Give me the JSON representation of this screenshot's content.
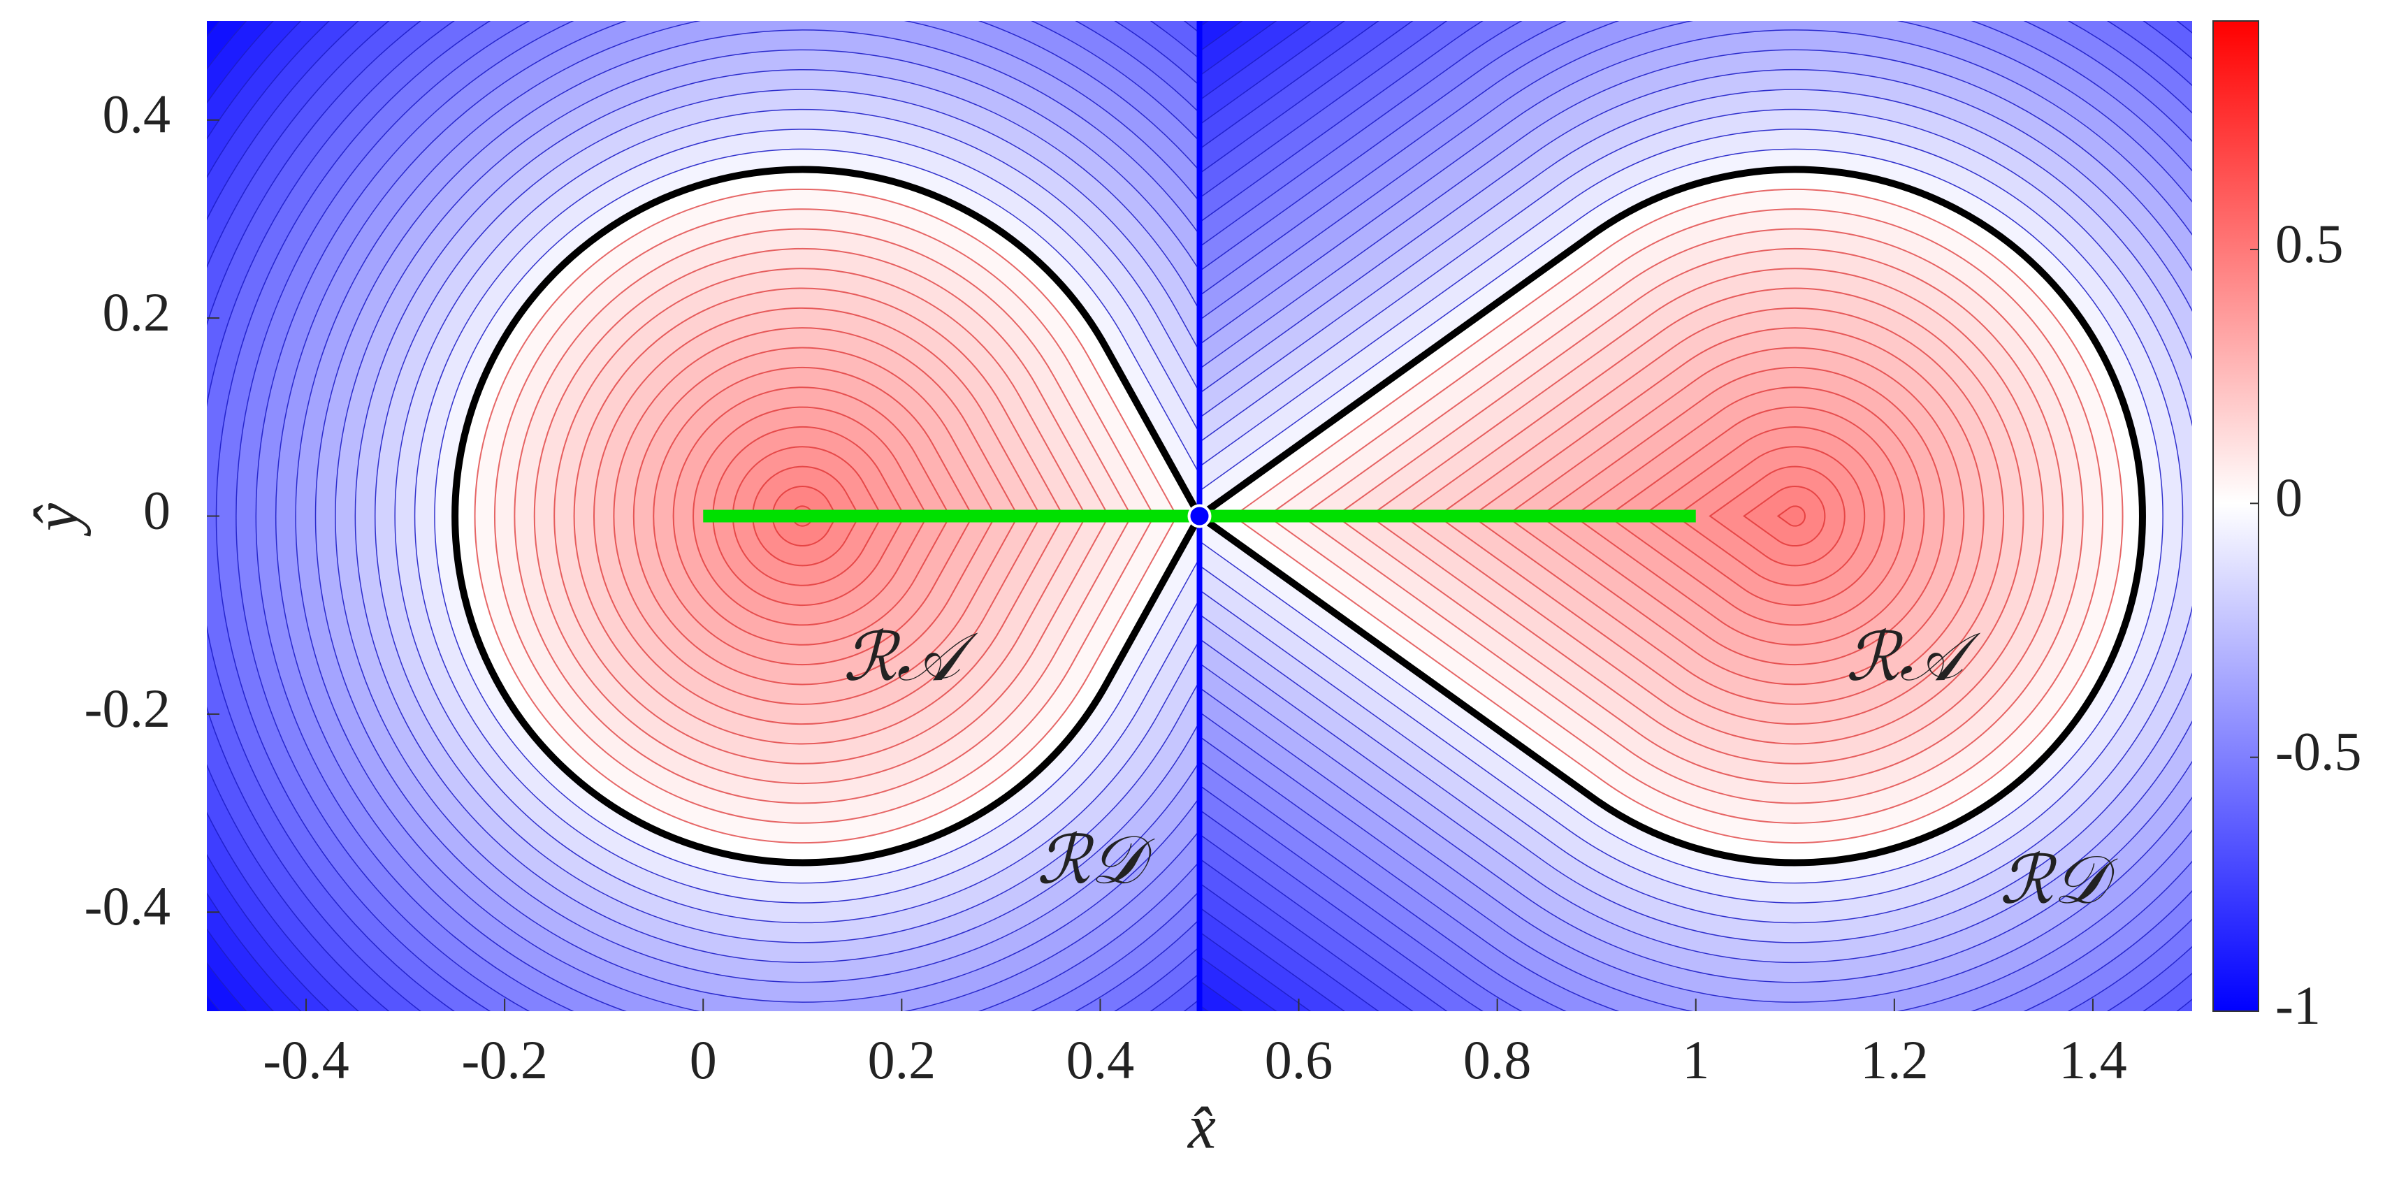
{
  "chart_data": {
    "type": "contour",
    "xlabel": "x̂",
    "ylabel": "ŷ",
    "xlim": [
      -0.5,
      1.5
    ],
    "ylim": [
      -0.5,
      0.5
    ],
    "xticks": [
      -0.4,
      -0.2,
      0,
      0.2,
      0.4,
      0.6,
      0.8,
      1,
      1.2,
      1.4
    ],
    "yticks": [
      -0.4,
      -0.2,
      0,
      0.2,
      0.4
    ],
    "colorbar": {
      "clim": [
        -1,
        0.95
      ],
      "ticks": [
        -1,
        -0.5,
        0,
        0.5
      ],
      "colors": [
        "#0000ff",
        "#ffffff",
        "#ff0000"
      ]
    },
    "regions": [
      {
        "apex": [
          0.5,
          0
        ],
        "center": [
          0.1,
          0
        ],
        "radius": 0.35,
        "color": "#000000"
      },
      {
        "apex": [
          0.5,
          0
        ],
        "center": [
          1.1,
          0
        ],
        "radius": 0.35,
        "color": "#000000"
      }
    ],
    "segments": [
      {
        "x": [
          0,
          1
        ],
        "y": [
          0,
          0
        ],
        "color": "#00e000"
      }
    ],
    "points": [
      {
        "x": 0.5,
        "y": 0,
        "color": "#0000ff"
      }
    ],
    "annotations": [
      {
        "text": "ℛ𝒜",
        "x": 0.2,
        "y": -0.15
      },
      {
        "text": "ℛ𝒜",
        "x": 1.21,
        "y": -0.15
      },
      {
        "text": "ℛ𝒟",
        "x": 0.39,
        "y": -0.355
      },
      {
        "text": "ℛ𝒟",
        "x": 1.36,
        "y": -0.375
      }
    ]
  }
}
